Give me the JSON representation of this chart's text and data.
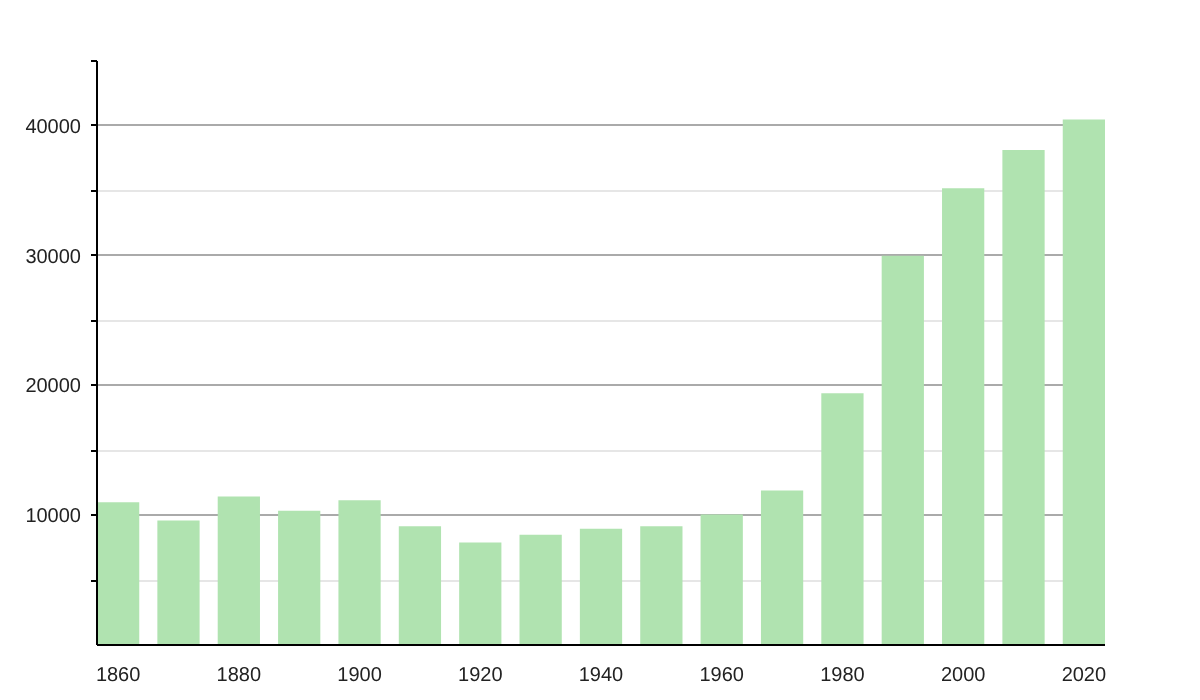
{
  "chart_data": {
    "type": "bar",
    "x": [
      1860,
      1870,
      1880,
      1890,
      1900,
      1910,
      1920,
      1930,
      1940,
      1950,
      1960,
      1970,
      1980,
      1990,
      2000,
      2010,
      2020
    ],
    "values": [
      11000,
      9600,
      11450,
      10350,
      11150,
      9150,
      7900,
      8500,
      8950,
      9150,
      10050,
      11900,
      19400,
      30000,
      35200,
      38150,
      40500
    ],
    "color": "#b0e3b0",
    "xlim": [
      1856.5,
      2023.5
    ],
    "xticks": [
      1860,
      1880,
      1900,
      1920,
      1940,
      1960,
      1980,
      2000,
      2020
    ],
    "ylim": [
      0,
      45000
    ],
    "yticks": [
      {
        "value": 5000,
        "label": null
      },
      10000,
      {
        "value": 15000,
        "label": null
      },
      20000,
      {
        "value": 25000,
        "label": null
      },
      30000,
      {
        "value": 35000,
        "label": null
      },
      40000,
      {
        "value": 45000,
        "label": null
      }
    ],
    "grid": "y"
  }
}
